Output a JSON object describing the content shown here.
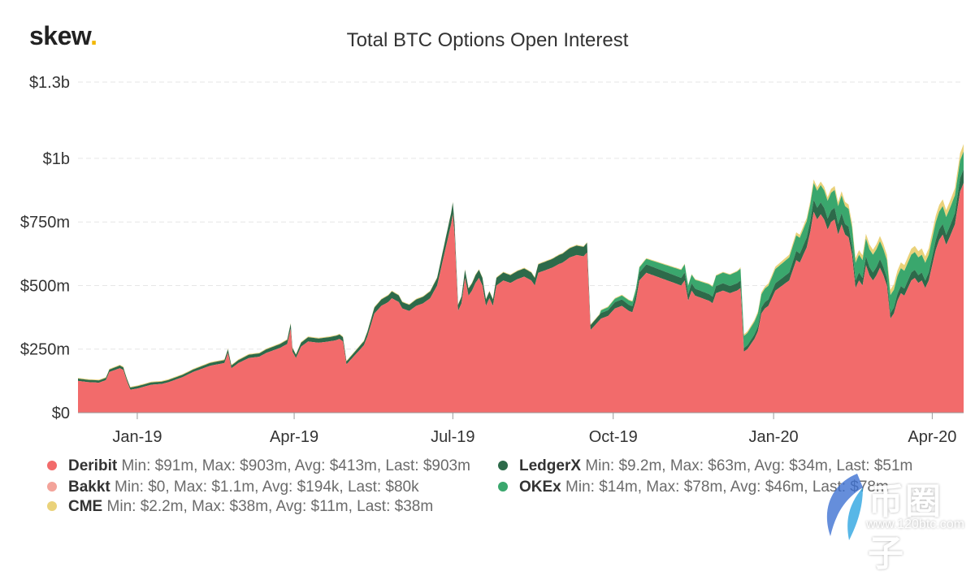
{
  "brand": {
    "name": "skew",
    "dot": "."
  },
  "colors": {
    "deribit": "#f26b6b",
    "bakkt": "#f3a39a",
    "cme": "#ead27a",
    "ledgerx": "#2d6a4a",
    "okex": "#3aa76d",
    "grid": "#e6e6e6",
    "axis": "#555555"
  },
  "chart_data": {
    "type": "area",
    "stacked": true,
    "title": "Total BTC Options Open Interest",
    "xlabel": "",
    "ylabel": "",
    "ylim": [
      0,
      1300
    ],
    "y_unit": "$m",
    "y_ticks": [
      {
        "value": 0,
        "label": "$0"
      },
      {
        "value": 250,
        "label": "$250m"
      },
      {
        "value": 500,
        "label": "$500m"
      },
      {
        "value": 750,
        "label": "$750m"
      },
      {
        "value": 1000,
        "label": "$1b"
      },
      {
        "value": 1300,
        "label": "$1.3b"
      }
    ],
    "x_range_days": [
      0,
      508
    ],
    "x_ticks": [
      {
        "day": 34,
        "label": "Jan-19"
      },
      {
        "day": 124,
        "label": "Apr-19"
      },
      {
        "day": 215,
        "label": "Jul-19"
      },
      {
        "day": 307,
        "label": "Oct-19"
      },
      {
        "day": 399,
        "label": "Jan-20"
      },
      {
        "day": 490,
        "label": "Apr-20"
      }
    ],
    "x_start": "2018-11-28",
    "series": [
      {
        "name": "Deribit",
        "color_key": "deribit",
        "stats": "Min: $91m, Max: $903m, Avg: $413m, Last: $903m",
        "points": [
          [
            0,
            125
          ],
          [
            6,
            120
          ],
          [
            12,
            118
          ],
          [
            16,
            128
          ],
          [
            18,
            160
          ],
          [
            22,
            170
          ],
          [
            24,
            175
          ],
          [
            26,
            168
          ],
          [
            28,
            125
          ],
          [
            30,
            90
          ],
          [
            34,
            95
          ],
          [
            42,
            110
          ],
          [
            48,
            113
          ],
          [
            52,
            120
          ],
          [
            56,
            130
          ],
          [
            60,
            140
          ],
          [
            66,
            160
          ],
          [
            72,
            175
          ],
          [
            76,
            185
          ],
          [
            80,
            190
          ],
          [
            84,
            195
          ],
          [
            86,
            235
          ],
          [
            88,
            175
          ],
          [
            92,
            195
          ],
          [
            98,
            215
          ],
          [
            104,
            220
          ],
          [
            108,
            235
          ],
          [
            112,
            245
          ],
          [
            116,
            255
          ],
          [
            120,
            270
          ],
          [
            122,
            330
          ],
          [
            123,
            240
          ],
          [
            125,
            215
          ],
          [
            128,
            260
          ],
          [
            132,
            280
          ],
          [
            138,
            275
          ],
          [
            144,
            280
          ],
          [
            148,
            285
          ],
          [
            150,
            290
          ],
          [
            152,
            280
          ],
          [
            154,
            190
          ],
          [
            156,
            205
          ],
          [
            160,
            235
          ],
          [
            164,
            265
          ],
          [
            166,
            300
          ],
          [
            170,
            390
          ],
          [
            174,
            420
          ],
          [
            178,
            435
          ],
          [
            180,
            450
          ],
          [
            184,
            435
          ],
          [
            186,
            410
          ],
          [
            190,
            400
          ],
          [
            194,
            420
          ],
          [
            198,
            430
          ],
          [
            202,
            450
          ],
          [
            206,
            500
          ],
          [
            208,
            560
          ],
          [
            210,
            620
          ],
          [
            212,
            680
          ],
          [
            214,
            740
          ],
          [
            215,
            780
          ],
          [
            216,
            700
          ],
          [
            218,
            400
          ],
          [
            220,
            430
          ],
          [
            222,
            530
          ],
          [
            224,
            460
          ],
          [
            226,
            480
          ],
          [
            228,
            510
          ],
          [
            230,
            530
          ],
          [
            232,
            500
          ],
          [
            234,
            420
          ],
          [
            236,
            450
          ],
          [
            238,
            420
          ],
          [
            240,
            500
          ],
          [
            244,
            520
          ],
          [
            248,
            510
          ],
          [
            252,
            525
          ],
          [
            256,
            535
          ],
          [
            260,
            520
          ],
          [
            262,
            500
          ],
          [
            264,
            550
          ],
          [
            268,
            560
          ],
          [
            272,
            570
          ],
          [
            276,
            585
          ],
          [
            278,
            590
          ],
          [
            282,
            610
          ],
          [
            286,
            620
          ],
          [
            290,
            615
          ],
          [
            292,
            630
          ],
          [
            294,
            325
          ],
          [
            296,
            340
          ],
          [
            300,
            370
          ],
          [
            304,
            380
          ],
          [
            308,
            410
          ],
          [
            312,
            420
          ],
          [
            316,
            400
          ],
          [
            318,
            395
          ],
          [
            320,
            440
          ],
          [
            322,
            520
          ],
          [
            326,
            550
          ],
          [
            330,
            540
          ],
          [
            334,
            530
          ],
          [
            338,
            520
          ],
          [
            342,
            510
          ],
          [
            346,
            500
          ],
          [
            348,
            520
          ],
          [
            350,
            440
          ],
          [
            352,
            480
          ],
          [
            354,
            460
          ],
          [
            358,
            450
          ],
          [
            362,
            440
          ],
          [
            364,
            430
          ],
          [
            366,
            470
          ],
          [
            370,
            480
          ],
          [
            374,
            470
          ],
          [
            378,
            480
          ],
          [
            380,
            490
          ],
          [
            382,
            240
          ],
          [
            384,
            250
          ],
          [
            386,
            270
          ],
          [
            388,
            290
          ],
          [
            390,
            320
          ],
          [
            392,
            390
          ],
          [
            394,
            410
          ],
          [
            396,
            420
          ],
          [
            398,
            450
          ],
          [
            400,
            480
          ],
          [
            404,
            500
          ],
          [
            408,
            520
          ],
          [
            410,
            560
          ],
          [
            412,
            600
          ],
          [
            414,
            590
          ],
          [
            416,
            620
          ],
          [
            418,
            650
          ],
          [
            420,
            710
          ],
          [
            422,
            790
          ],
          [
            424,
            760
          ],
          [
            426,
            780
          ],
          [
            428,
            760
          ],
          [
            430,
            720
          ],
          [
            432,
            750
          ],
          [
            434,
            760
          ],
          [
            436,
            700
          ],
          [
            438,
            740
          ],
          [
            440,
            700
          ],
          [
            442,
            690
          ],
          [
            444,
            620
          ],
          [
            446,
            490
          ],
          [
            448,
            520
          ],
          [
            450,
            500
          ],
          [
            452,
            580
          ],
          [
            454,
            540
          ],
          [
            456,
            520
          ],
          [
            458,
            540
          ],
          [
            460,
            570
          ],
          [
            462,
            540
          ],
          [
            464,
            500
          ],
          [
            466,
            370
          ],
          [
            468,
            390
          ],
          [
            470,
            440
          ],
          [
            472,
            470
          ],
          [
            474,
            460
          ],
          [
            476,
            490
          ],
          [
            478,
            520
          ],
          [
            480,
            530
          ],
          [
            482,
            510
          ],
          [
            484,
            520
          ],
          [
            486,
            490
          ],
          [
            488,
            520
          ],
          [
            490,
            580
          ],
          [
            492,
            640
          ],
          [
            494,
            680
          ],
          [
            496,
            700
          ],
          [
            498,
            660
          ],
          [
            500,
            690
          ],
          [
            503,
            740
          ],
          [
            506,
            870
          ],
          [
            508,
            903
          ]
        ]
      },
      {
        "name": "Bakkt",
        "color_key": "bakkt",
        "stats": "Min: $0, Max: $1.1m, Avg: $194k, Last: $80k"
      },
      {
        "name": "CME",
        "color_key": "cme",
        "stats": "Min: $2.2m, Max: $38m, Avg: $11m, Last: $38m"
      },
      {
        "name": "LedgerX",
        "color_key": "ledgerx",
        "stats": "Min: $9.2m, Max: $63m, Avg: $34m, Last: $51m"
      },
      {
        "name": "OKEx",
        "color_key": "okex",
        "stats": "Min: $14m, Max: $78m, Avg: $46m, Last: $78m"
      }
    ]
  },
  "watermark": {
    "text": "币圈子",
    "url": "www.120btc.com"
  }
}
